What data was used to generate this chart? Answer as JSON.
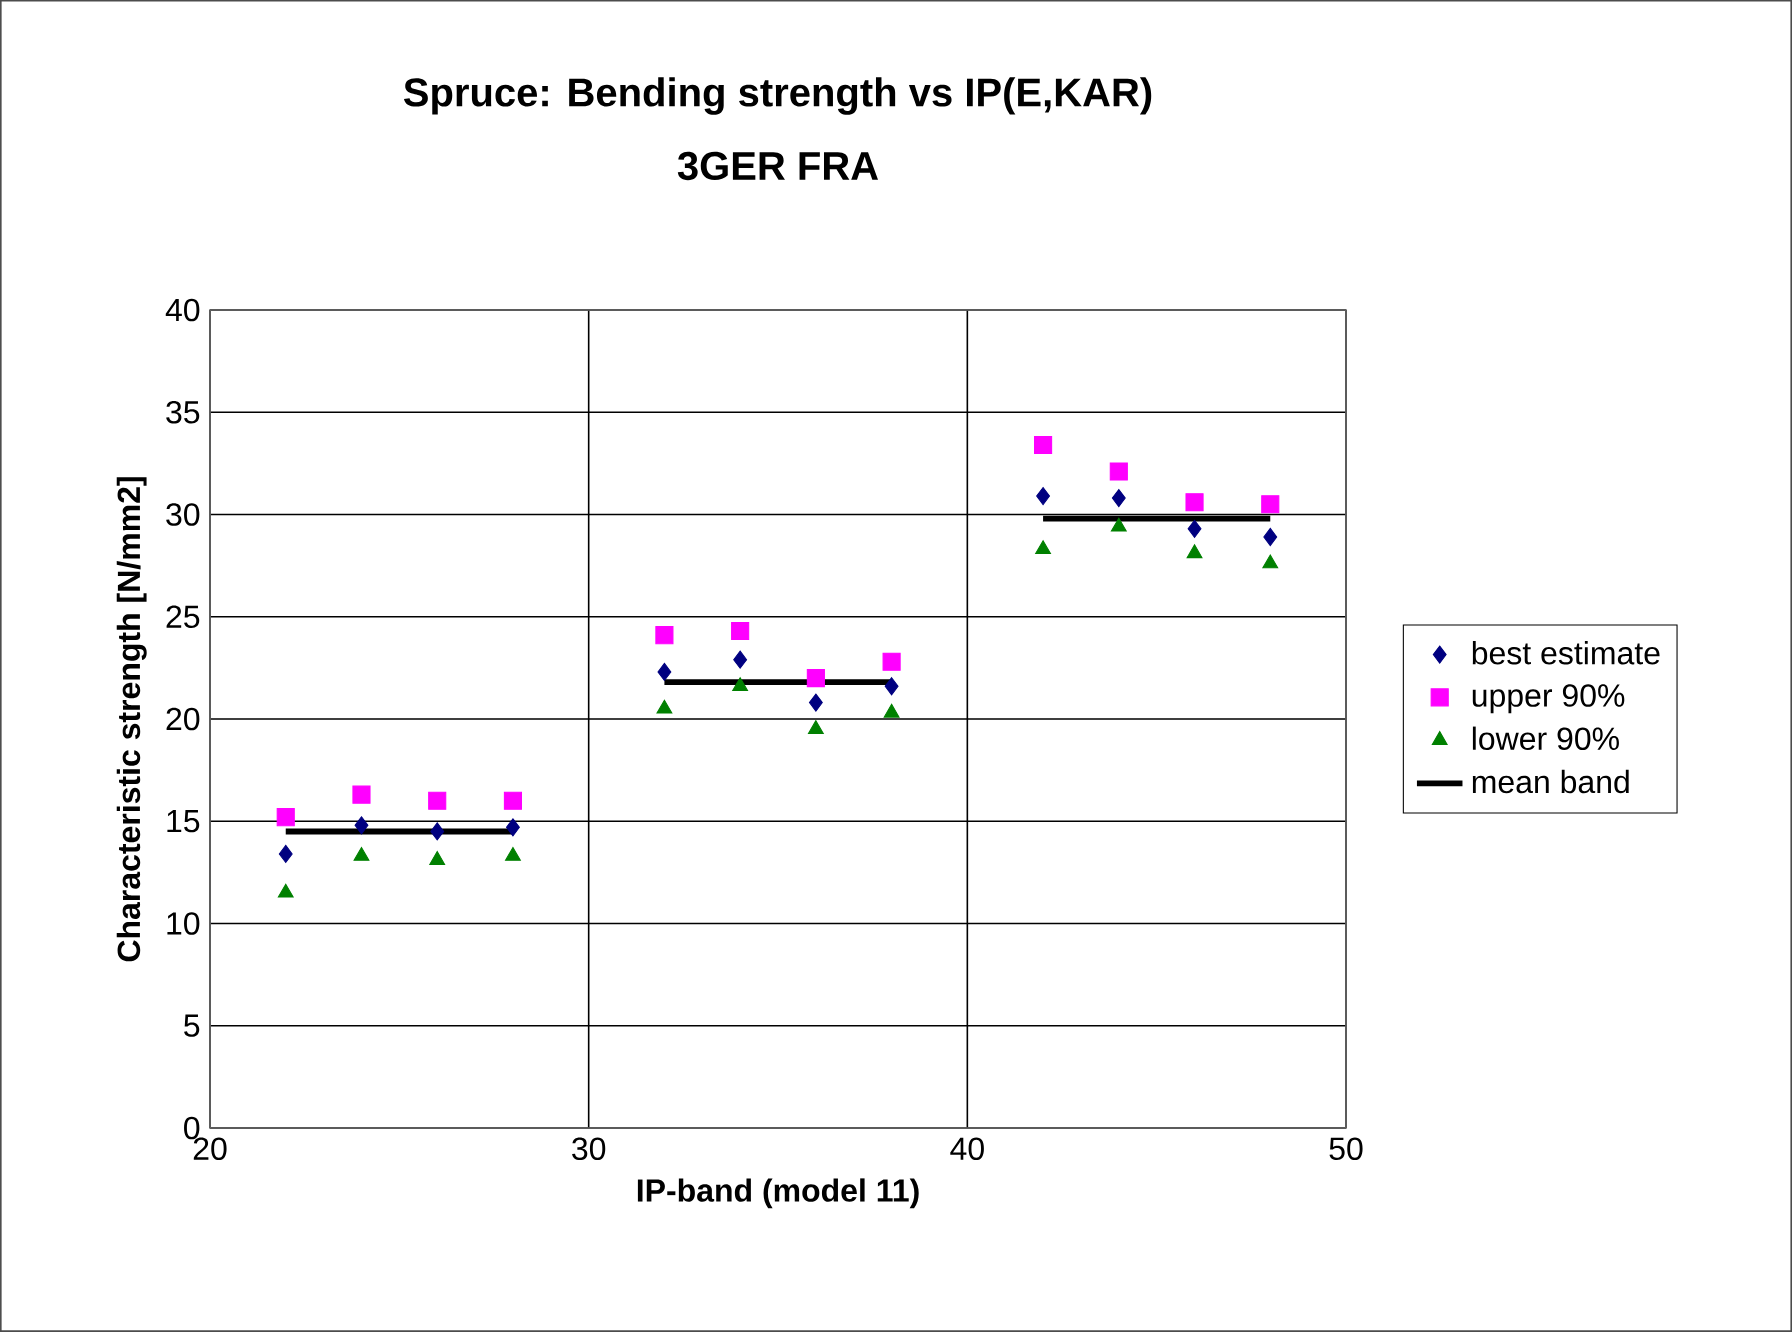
{
  "chart_data": {
    "type": "scatter",
    "title": "Spruce: Bending strength vs IP(E,KAR)",
    "subtitle": "3GER FRA",
    "xlabel": "IP-band (model 11)",
    "ylabel": "Characteristic strength [N/mm2]",
    "x": [
      22,
      24,
      26,
      28,
      32,
      34,
      36,
      38,
      42,
      44,
      46,
      48
    ],
    "series": [
      {
        "name": "best estimate",
        "color": "#000080",
        "marker": "diamond",
        "values": [
          13.4,
          14.8,
          14.5,
          14.7,
          22.3,
          22.9,
          20.8,
          21.6,
          30.9,
          30.8,
          29.3,
          28.9
        ]
      },
      {
        "name": "upper 90%",
        "color": "#ff00ff",
        "marker": "square",
        "values": [
          15.2,
          16.3,
          16.0,
          16.0,
          24.1,
          24.3,
          22.0,
          22.8,
          33.4,
          32.1,
          30.6,
          30.5
        ]
      },
      {
        "name": "lower 90%",
        "color": "#008000",
        "marker": "triangle",
        "values": [
          11.5,
          13.3,
          13.1,
          13.3,
          20.5,
          21.6,
          19.5,
          20.3,
          28.3,
          29.4,
          28.1,
          27.6
        ]
      },
      {
        "name": "mean band",
        "color": "#000000",
        "type": "line",
        "marker": "none",
        "line_style": "solid",
        "x": [
          22,
          28,
          30,
          32,
          38,
          40,
          42,
          48
        ],
        "values": [
          14.5,
          14.5,
          null,
          21.8,
          21.8,
          null,
          29.8,
          29.8
        ]
      }
    ],
    "xlim": [
      20,
      50
    ],
    "xticks": [
      20,
      30,
      40,
      50
    ],
    "ylim": [
      0,
      40
    ],
    "yticks": [
      0,
      5,
      10,
      15,
      20,
      25,
      30,
      35,
      40
    ],
    "grid": true,
    "legend": "right"
  }
}
